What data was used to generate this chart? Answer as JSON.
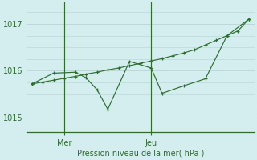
{
  "line_smooth_x": [
    0,
    1,
    2,
    3,
    4,
    5,
    6,
    7,
    8,
    9,
    10,
    11,
    12,
    13,
    14,
    15,
    16,
    17,
    18,
    19,
    20
  ],
  "line_smooth_y": [
    1015.72,
    1015.76,
    1015.8,
    1015.84,
    1015.88,
    1015.93,
    1015.97,
    1016.02,
    1016.06,
    1016.11,
    1016.16,
    1016.21,
    1016.26,
    1016.32,
    1016.38,
    1016.45,
    1016.55,
    1016.65,
    1016.75,
    1016.85,
    1017.1
  ],
  "line_jagged_x": [
    0,
    2,
    4,
    5,
    6,
    7,
    9,
    11,
    12,
    14,
    16,
    18,
    20
  ],
  "line_jagged_y": [
    1015.72,
    1015.95,
    1015.97,
    1015.85,
    1015.6,
    1015.18,
    1016.2,
    1016.06,
    1015.52,
    1015.68,
    1015.83,
    1016.75,
    1017.1
  ],
  "line_color": "#2d6e2d",
  "bg_color": "#d4eef0",
  "grid_color": "#bcd8da",
  "xlabel": "Pression niveau de la mer( hPa )",
  "mer_x": 3,
  "jeu_x": 11,
  "vline_positions": [
    3,
    11
  ],
  "xtick_labels": [
    "Mer",
    "Jeu"
  ],
  "ylim": [
    1014.7,
    1017.45
  ],
  "yticks": [
    1015,
    1016,
    1017
  ],
  "xlim": [
    -0.5,
    20.5
  ],
  "label_fontsize": 7,
  "tick_fontsize": 7
}
